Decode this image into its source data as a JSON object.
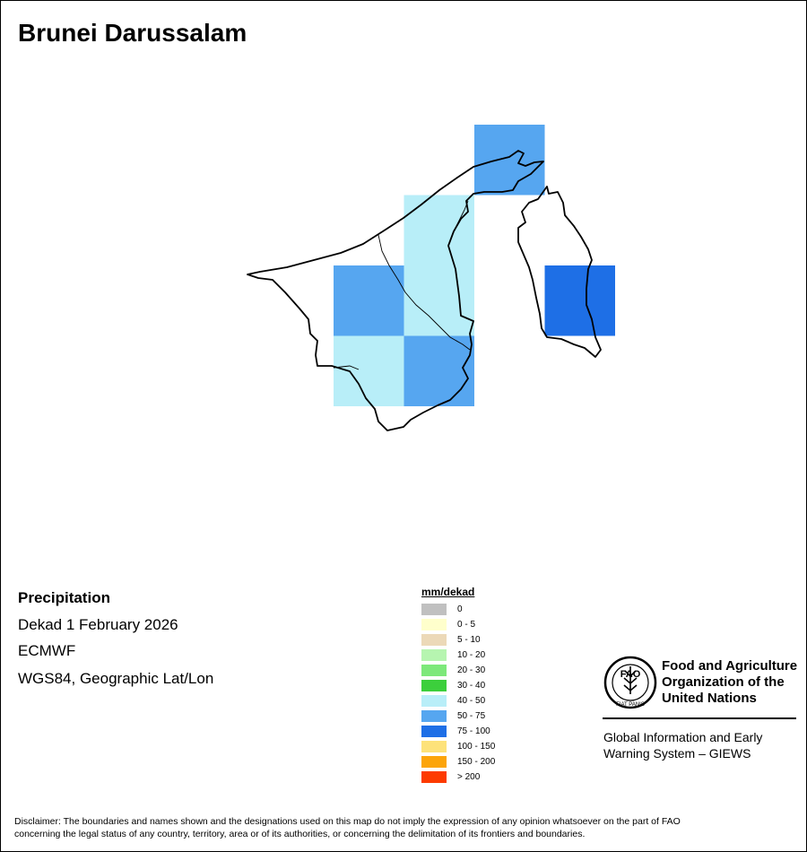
{
  "title": "Brunei Darussalam",
  "info": {
    "variable": "Precipitation",
    "period": "Dekad 1 February 2026",
    "source": "ECMWF",
    "projection": "WGS84, Geographic Lat/Lon"
  },
  "legend": {
    "title": "mm/dekad",
    "items": [
      {
        "label": "0",
        "color": "#c0c0c0"
      },
      {
        "label": "0 - 5",
        "color": "#ffffcc"
      },
      {
        "label": "5 - 10",
        "color": "#ecd9b8"
      },
      {
        "label": "10 - 20",
        "color": "#b6f5b0"
      },
      {
        "label": "20 - 30",
        "color": "#7de87a"
      },
      {
        "label": "30 - 40",
        "color": "#3ccf3c"
      },
      {
        "label": "40 - 50",
        "color": "#b8eef8"
      },
      {
        "label": "50 - 75",
        "color": "#56a6f0"
      },
      {
        "label": "75 - 100",
        "color": "#1e6fe6"
      },
      {
        "label": "100 - 150",
        "color": "#fde27a"
      },
      {
        "label": "150 - 200",
        "color": "#fca40a"
      },
      {
        "label": "> 200",
        "color": "#fd3b00"
      }
    ]
  },
  "grid_cells": [
    {
      "row": 0,
      "col": 2,
      "class": "50 - 75"
    },
    {
      "row": 1,
      "col": 1,
      "class": "40 - 50"
    },
    {
      "row": 2,
      "col": 0,
      "class": "50 - 75"
    },
    {
      "row": 2,
      "col": 1,
      "class": "40 - 50"
    },
    {
      "row": 2,
      "col": 3,
      "class": "75 - 100"
    },
    {
      "row": 3,
      "col": 0,
      "class": "40 - 50"
    },
    {
      "row": 3,
      "col": 1,
      "class": "50 - 75"
    }
  ],
  "logo": {
    "org_line1": "Food and Agriculture",
    "org_line2": "Organization of the",
    "org_line3": "United Nations",
    "emblem_text": "FAO",
    "motto": "FIAT PANIS",
    "system_line1": "Global Information and Early",
    "system_line2": "Warning System – GIEWS"
  },
  "disclaimer_line1": "Disclaimer: The boundaries and names shown and the designations used on this map do not imply the expression of any opinion whatsoever on the part of FAO",
  "disclaimer_line2": "concerning the legal status of any country, territory, area or of its authorities, or concerning the delimitation of its frontiers and boundaries."
}
